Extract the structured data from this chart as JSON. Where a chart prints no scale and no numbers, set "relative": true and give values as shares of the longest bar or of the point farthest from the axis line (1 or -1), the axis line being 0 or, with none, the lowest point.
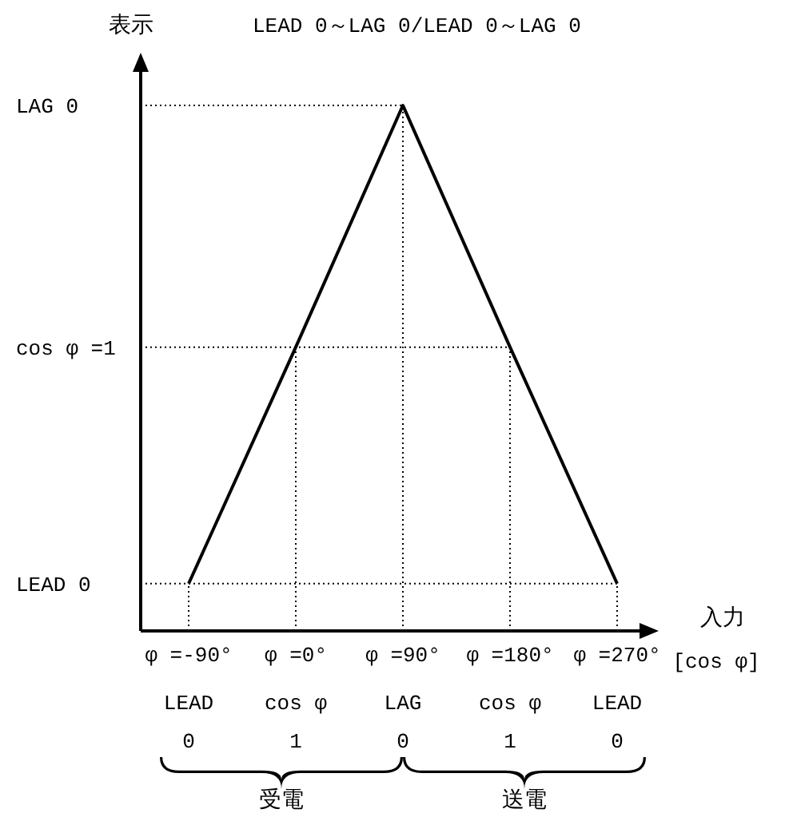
{
  "chart_data": {
    "type": "line",
    "title": "LEAD 0～LAG 0/LEAD 0～LAG 0",
    "xlabel": "入力",
    "ylabel": "表示",
    "categories": [
      "φ =-90°\nLEAD\n0",
      "φ =0°\ncos φ\n1",
      "φ =90°\nLAG\n0",
      "φ =180°\ncos φ\n1",
      "φ =270°\nLEAD\n0"
    ],
    "values": [
      0.09,
      0.54,
      1,
      0.54,
      0.09
    ],
    "color": "#000000",
    "relative": true,
    "ref_lines": [
      {
        "axis": "y",
        "value": 0.09,
        "label": "LEAD 0",
        "line_style": "dotted"
      },
      {
        "axis": "y",
        "value": 0.54,
        "label": "cos φ =1",
        "line_style": "dotted"
      },
      {
        "axis": "y",
        "value": 1,
        "label": "LAG 0",
        "line_style": "dotted"
      },
      {
        "axis": "x",
        "value": "φ =-90°\nLEAD\n0",
        "line_style": "dotted"
      },
      {
        "axis": "x",
        "value": "φ =0°\ncos φ\n1",
        "line_style": "dotted"
      },
      {
        "axis": "x",
        "value": "φ =90°\nLAG\n0",
        "line_style": "dotted"
      },
      {
        "axis": "x",
        "value": "φ =180°\ncos φ\n1",
        "line_style": "dotted"
      },
      {
        "axis": "x",
        "value": "φ =270°\nLEAD\n0",
        "line_style": "dotted"
      }
    ],
    "annotations": [
      "[cos φ]",
      "受電",
      "送電"
    ]
  }
}
